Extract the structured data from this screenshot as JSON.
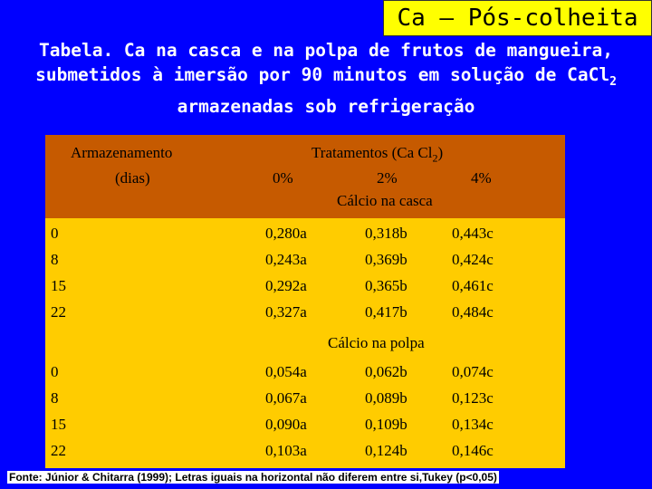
{
  "title": "Ca – Pós-colheita",
  "subtitle": {
    "line1": "Tabela. Ca na casca e na polpa de frutos de mangueira,",
    "line2_prefix": "submetidos à imersão por 90 minutos em solução de CaCl",
    "line2_sub": "2",
    "line3": "armazenadas sob refrigeração"
  },
  "header": {
    "col1_line1": "Armazenamento",
    "col1_line2": "(dias)",
    "tratamentos_prefix": "Tratamentos (Ca Cl",
    "tratamentos_sub": "2",
    "tratamentos_suffix": ")",
    "levels": [
      "0%",
      "2%",
      "4%"
    ],
    "casca_label": "Cálcio na casca"
  },
  "casca": {
    "days": [
      "0",
      "8",
      "15",
      "22"
    ],
    "rows": [
      [
        "0,280a",
        "0,318b",
        "0,443c"
      ],
      [
        "0,243a",
        "0,369b",
        "0,424c"
      ],
      [
        "0,292a",
        "0,365b",
        "0,461c"
      ],
      [
        "0,327a",
        "0,417b",
        "0,484c"
      ]
    ]
  },
  "polpa_label": "Cálcio na polpa",
  "polpa": {
    "days": [
      "0",
      "8",
      "15",
      "22"
    ],
    "rows": [
      [
        "0,054a",
        "0,062b",
        "0,074c"
      ],
      [
        "0,067a",
        "0,089b",
        "0,123c"
      ],
      [
        "0,090a",
        "0,109b",
        "0,134c"
      ],
      [
        "0,103a",
        "0,124b",
        "0,146c"
      ]
    ]
  },
  "footnote": "Fonte: Júnior & Chitarra (1999); Letras iguais na horizontal não diferem entre si,Tukey (p<0,05)"
}
